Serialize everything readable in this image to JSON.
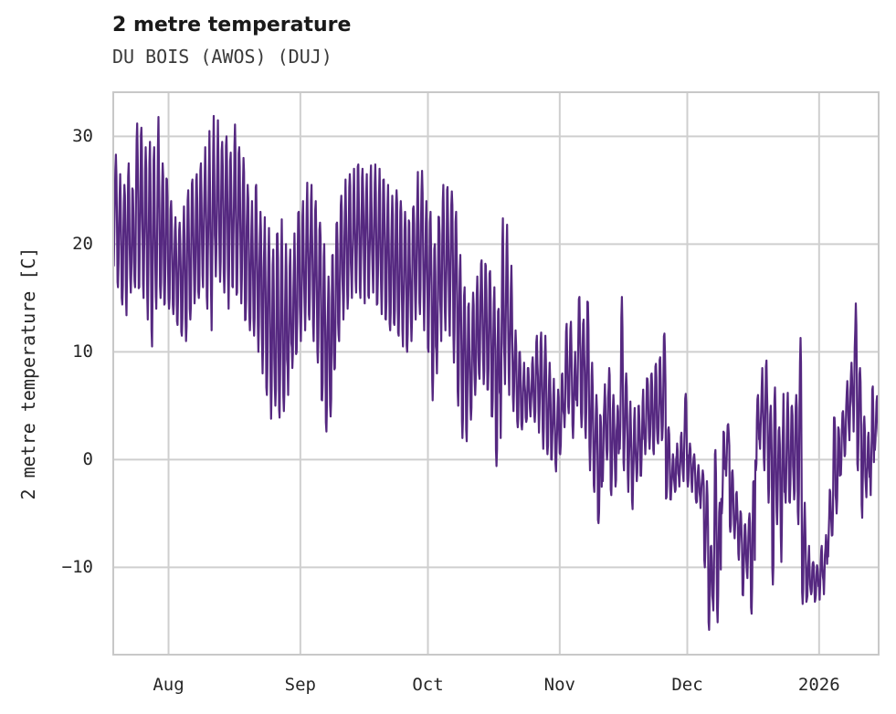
{
  "header": {
    "title": "2 metre temperature",
    "subtitle": "DU BOIS (AWOS) (DUJ)"
  },
  "chart_data": {
    "type": "line",
    "title": "2 metre temperature",
    "subtitle": "DU BOIS (AWOS) (DUJ)",
    "ylabel": "2 metre temperature [C]",
    "xlabel": "",
    "series_name": "2 metre temperature",
    "line_color": "#552880",
    "grid_color": "#cfcfcf",
    "frame_color": "#c8c8c8",
    "text_color": "#262626",
    "background_color": "#ffffff",
    "grid": true,
    "legend": false,
    "ylim": [
      -18.1,
      34.1
    ],
    "y_ticks": [
      {
        "value": 30,
        "label": "30"
      },
      {
        "value": 20,
        "label": "20"
      },
      {
        "value": 10,
        "label": "10"
      },
      {
        "value": 0,
        "label": "0"
      },
      {
        "value": -10,
        "label": "−10"
      }
    ],
    "x_ticks": [
      {
        "label": "Aug",
        "day_offset": 13
      },
      {
        "label": "Sep",
        "day_offset": 44
      },
      {
        "label": "Oct",
        "day_offset": 74
      },
      {
        "label": "Nov",
        "day_offset": 105
      },
      {
        "label": "Dec",
        "day_offset": 135
      },
      {
        "label": "2026",
        "day_offset": 166
      }
    ],
    "start_date": "2025-07-19",
    "end_date": "2026-01-15",
    "days_total": 181,
    "sampling": "hourly observations, shown as daily max/min envelope",
    "unit": "degrees Celsius",
    "daily": {
      "tmax": [
        28.3,
        26.5,
        25.5,
        27.5,
        25.0,
        31.2,
        30.8,
        29.0,
        29.5,
        29.0,
        31.8,
        27.5,
        26.0,
        24.0,
        22.5,
        22.0,
        23.5,
        25.0,
        26.0,
        26.5,
        27.5,
        29.0,
        30.5,
        31.9,
        31.5,
        29.5,
        30.0,
        28.5,
        31.1,
        29.0,
        28.0,
        25.5,
        24.0,
        25.5,
        23.0,
        22.5,
        21.5,
        19.5,
        21.0,
        22.3,
        20.0,
        19.5,
        21.0,
        23.0,
        24.0,
        25.7,
        25.5,
        24.0,
        22.0,
        20.0,
        17.0,
        19.0,
        22.0,
        24.5,
        26.0,
        26.5,
        27.0,
        27.4,
        27.0,
        26.5,
        27.3,
        27.4,
        27.0,
        26.0,
        25.5,
        24.5,
        25.0,
        24.0,
        23.0,
        22.0,
        23.5,
        26.7,
        26.8,
        24.0,
        23.0,
        20.0,
        22.5,
        25.5,
        25.3,
        24.9,
        23.0,
        19.0,
        16.0,
        14.5,
        15.5,
        17.0,
        18.5,
        18.0,
        17.5,
        16.0,
        14.0,
        22.4,
        21.8,
        18.0,
        12.0,
        10.0,
        9.0,
        8.5,
        9.5,
        11.5,
        11.8,
        11.5,
        9.0,
        7.5,
        6.5,
        8.0,
        12.6,
        12.8,
        10.0,
        15.1,
        13.0,
        14.6,
        9.0,
        6.0,
        4.0,
        7.0,
        8.5,
        6.0,
        5.0,
        15.1,
        8.0,
        5.4,
        4.8,
        5.0,
        6.5,
        7.5,
        8.0,
        8.9,
        9.5,
        11.7,
        3.0,
        0.5,
        1.5,
        2.5,
        6.1,
        1.5,
        0.5,
        -0.5,
        -1.0,
        -2.0,
        -8.0,
        0.9,
        -4.0,
        2.5,
        3.3,
        -1.0,
        -3.0,
        -5.0,
        -6.0,
        -5.0,
        -2.0,
        6.0,
        8.5,
        9.2,
        5.0,
        6.7,
        3.0,
        6.1,
        6.2,
        5.0,
        6.0,
        11.3,
        -4.0,
        -8.0,
        -9.5,
        -10.0,
        -8.0,
        -7.0,
        -3.0,
        3.9,
        2.8,
        4.5,
        7.3,
        9.0,
        14.5,
        8.5,
        4.0,
        2.5,
        6.8,
        5.9,
        6.0
      ],
      "tmin": [
        18.0,
        16.0,
        14.4,
        13.4,
        15.5,
        16.0,
        16.0,
        15.0,
        13.0,
        10.5,
        14.0,
        15.0,
        14.5,
        14.0,
        13.5,
        12.5,
        11.5,
        11.0,
        13.0,
        14.5,
        15.0,
        16.0,
        14.0,
        12.0,
        17.0,
        16.5,
        15.5,
        14.0,
        16.0,
        15.5,
        14.5,
        13.0,
        12.0,
        11.5,
        10.0,
        8.0,
        6.0,
        3.8,
        5.0,
        3.9,
        4.5,
        6.0,
        8.5,
        10.0,
        11.0,
        12.0,
        13.0,
        11.0,
        9.0,
        5.5,
        2.6,
        4.0,
        8.5,
        11.0,
        13.0,
        14.0,
        15.0,
        15.5,
        15.0,
        14.5,
        15.0,
        15.5,
        14.5,
        13.5,
        13.0,
        12.0,
        12.5,
        11.5,
        10.5,
        10.0,
        11.0,
        13.0,
        13.5,
        12.0,
        10.0,
        5.5,
        8.0,
        11.0,
        12.0,
        11.5,
        9.0,
        5.0,
        2.0,
        1.7,
        3.7,
        6.0,
        7.5,
        7.0,
        6.5,
        4.0,
        -0.6,
        2.0,
        7.0,
        6.0,
        4.5,
        3.0,
        2.8,
        3.5,
        4.0,
        3.5,
        2.5,
        1.0,
        0.5,
        0.0,
        -1.1,
        0.5,
        3.0,
        4.3,
        2.0,
        5.0,
        3.0,
        2.0,
        -1.0,
        -3.0,
        -5.9,
        -2.0,
        0.0,
        -3.3,
        -2.5,
        1.0,
        -1.0,
        -3.0,
        -4.6,
        -2.0,
        -1.5,
        0.5,
        1.0,
        0.5,
        1.5,
        2.0,
        -3.5,
        -3.7,
        -3.0,
        -2.5,
        -2.0,
        -2.5,
        -3.0,
        -4.0,
        -4.5,
        -10.0,
        -15.8,
        -14.0,
        -15.1,
        -5.0,
        -1.5,
        -6.7,
        -7.3,
        -9.3,
        -12.6,
        -11.0,
        -14.3,
        -1.0,
        1.0,
        -1.0,
        -4.0,
        -11.6,
        -6.0,
        -9.5,
        -4.0,
        -4.0,
        -3.7,
        -6.0,
        -13.4,
        -13.0,
        -12.5,
        -13.0,
        -13.0,
        -12.5,
        -9.0,
        -7.0,
        -5.0,
        -1.4,
        0.5,
        1.8,
        2.6,
        -1.0,
        -5.4,
        -3.5,
        -3.3,
        0.9,
        1.0
      ]
    }
  }
}
